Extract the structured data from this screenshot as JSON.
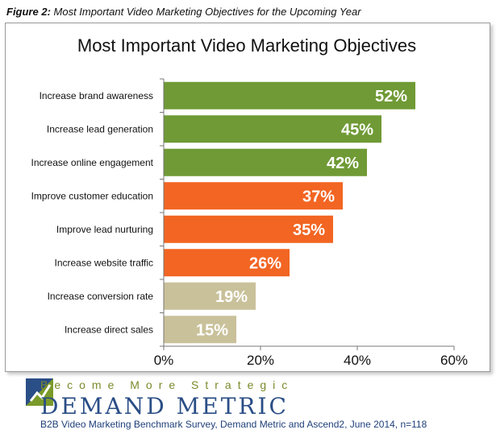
{
  "caption": {
    "lead": "Figure 2:",
    "text": " Most Important Video Marketing Objectives for the Upcoming Year"
  },
  "chart_data": {
    "type": "bar",
    "orientation": "horizontal",
    "title": "Most Important Video Marketing Objectives",
    "categories": [
      "Increase brand awareness",
      "Increase lead generation",
      "Increase online engagement",
      "Improve customer education",
      "Improve lead nurturing",
      "Increase website traffic",
      "Increase conversion rate",
      "Increase direct sales"
    ],
    "values": [
      52,
      45,
      42,
      37,
      35,
      26,
      19,
      15
    ],
    "value_labels": [
      "52%",
      "45%",
      "42%",
      "37%",
      "35%",
      "26%",
      "19%",
      "15%"
    ],
    "bar_colors": [
      "#6f9a35",
      "#6f9a35",
      "#6f9a35",
      "#f26522",
      "#f26522",
      "#f26522",
      "#c9c19a",
      "#c9c19a"
    ],
    "xlim": [
      0,
      60
    ],
    "xticks": [
      0,
      20,
      40,
      60
    ],
    "xtick_labels": [
      "0%",
      "20%",
      "40%",
      "60%"
    ],
    "grid": false,
    "legend": "none"
  },
  "branding": {
    "tagline": "Become More Strategic",
    "name": "DEMAND METRIC",
    "logo_icon": "demand-metric-logo-icon",
    "logo_colors": [
      "#2a4e86",
      "#7a9a2a"
    ]
  },
  "source": "B2B Video Marketing Benchmark Survey, Demand Metric and Ascend2, June 2014, n=118"
}
